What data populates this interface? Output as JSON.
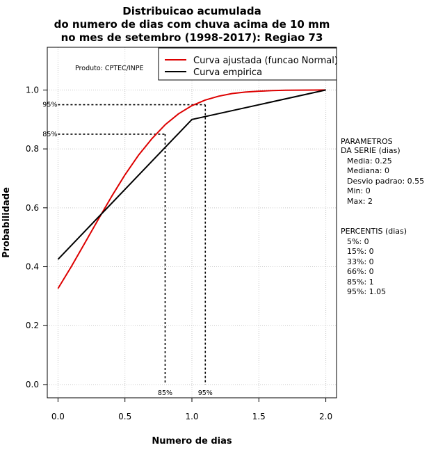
{
  "chart_data": {
    "type": "line",
    "title": [
      "Distribuicao acumulada",
      "do numero de dias com chuva acima de 10 mm",
      "no mes de setembro (1998-2017): Regiao 73"
    ],
    "xlabel": "Numero de dias",
    "ylabel": "Probabilidade",
    "xlim": [
      -0.08,
      2.08
    ],
    "ylim": [
      -0.045,
      1.145
    ],
    "x_ticks": [
      "0.0",
      "0.5",
      "1.0",
      "1.5",
      "2.0"
    ],
    "y_ticks": [
      "0.0",
      "0.2",
      "0.4",
      "0.6",
      "0.8",
      "1.0"
    ],
    "grid": true,
    "legend_position": "top-right",
    "series": [
      {
        "name": "Curva ajustada (funcao Normal)",
        "color": "#dd0000",
        "x": [
          0.0,
          0.1,
          0.2,
          0.3,
          0.4,
          0.5,
          0.6,
          0.7,
          0.8,
          0.9,
          1.0,
          1.1,
          1.2,
          1.3,
          1.4,
          1.5,
          1.6,
          1.7,
          1.8,
          1.9,
          2.0
        ],
        "y": [
          0.326,
          0.401,
          0.48,
          0.56,
          0.638,
          0.712,
          0.778,
          0.834,
          0.882,
          0.919,
          0.947,
          0.966,
          0.979,
          0.988,
          0.993,
          0.996,
          0.998,
          0.999,
          0.9995,
          0.9998,
          1.0
        ]
      },
      {
        "name": "Curva empirica",
        "color": "#000000",
        "x": [
          0.0,
          1.0,
          2.0
        ],
        "y": [
          0.425,
          0.9,
          1.0
        ]
      }
    ],
    "reference_lines": [
      {
        "label": "85%",
        "x": 0.8,
        "y": 0.85
      },
      {
        "label": "95%",
        "x": 1.1,
        "y": 0.95
      }
    ],
    "annotations": {
      "product": "Produto: CPTEC/INPE",
      "parametros_title": [
        "PARAMETROS",
        "DA SERIE (dias)"
      ],
      "parametros": [
        "Media: 0.25",
        "Mediana: 0",
        "Desvio padrao: 0.55",
        "Min: 0",
        "Max: 2"
      ],
      "percentis_title": "PERCENTIS (dias)",
      "percentis": [
        "5%: 0",
        "15%: 0",
        "33%: 0",
        "66%: 0",
        "85%: 1",
        "95%: 1.05"
      ]
    }
  }
}
